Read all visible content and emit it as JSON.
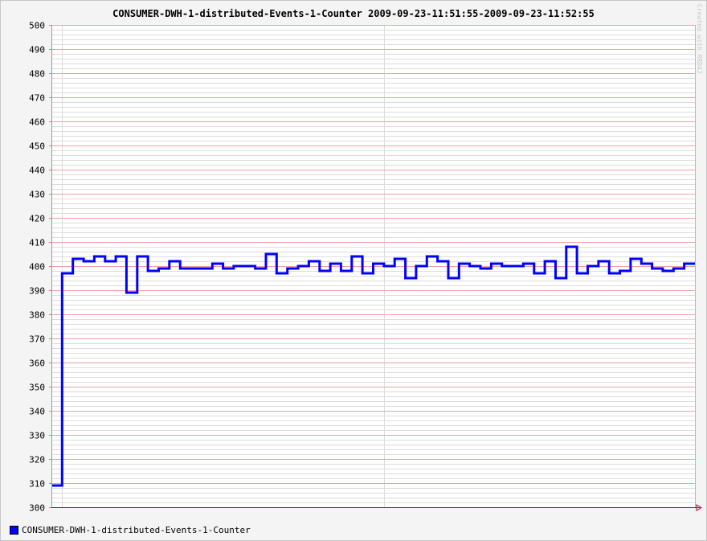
{
  "chart_data": {
    "type": "line",
    "step": true,
    "title": "CONSUMER-DWH-1-distributed-Events-1-Counter 2009-09-23-11:51:55-2009-09-23-11:52:55",
    "watermark": "Created with RRD4J",
    "xlabel": "",
    "ylabel": "",
    "ylim": [
      300,
      500
    ],
    "yticks": [
      300,
      310,
      320,
      330,
      340,
      350,
      360,
      370,
      380,
      390,
      400,
      410,
      420,
      430,
      440,
      450,
      460,
      470,
      480,
      490,
      500
    ],
    "xlim": [
      0,
      60
    ],
    "grid": true,
    "legend_position": "bottom-left",
    "colors": {
      "series": "#0000ff",
      "major_grid": "#f0a0a0",
      "minor_grid": "#dcdcdc",
      "axis": "#c00000",
      "background": "#ffffff",
      "canvas": "#f4f4f4"
    },
    "series": [
      {
        "name": "CONSUMER-DWH-1-distributed-Events-1-Counter",
        "x": [
          0,
          1,
          2,
          3,
          4,
          5,
          6,
          7,
          8,
          9,
          10,
          11,
          12,
          13,
          14,
          15,
          16,
          17,
          18,
          19,
          20,
          21,
          22,
          23,
          24,
          25,
          26,
          27,
          28,
          29,
          30,
          31,
          32,
          33,
          34,
          35,
          36,
          37,
          38,
          39,
          40,
          41,
          42,
          43,
          44,
          45,
          46,
          47,
          48,
          49,
          50,
          51,
          52,
          53,
          54,
          55,
          56,
          57,
          58,
          59
        ],
        "values": [
          309,
          397,
          403,
          402,
          404,
          402,
          404,
          389,
          404,
          398,
          399,
          402,
          399,
          399,
          399,
          401,
          399,
          400,
          400,
          399,
          405,
          397,
          399,
          400,
          402,
          398,
          401,
          398,
          404,
          397,
          401,
          400,
          403,
          395,
          400,
          404,
          402,
          395,
          401,
          400,
          399,
          401,
          400,
          400,
          401,
          397,
          402,
          395,
          408,
          397,
          400,
          402,
          397,
          398,
          403,
          401,
          399,
          398,
          399,
          401
        ]
      }
    ]
  }
}
